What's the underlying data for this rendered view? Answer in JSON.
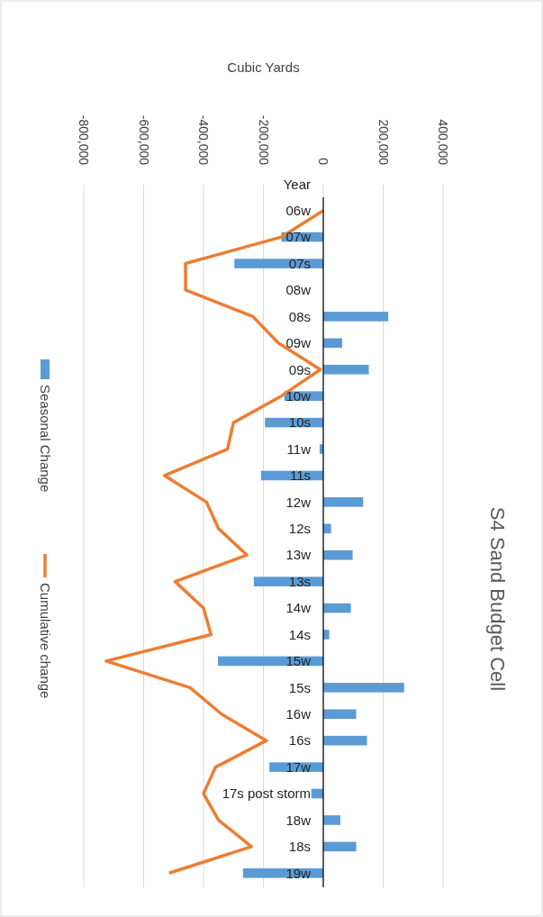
{
  "chart_data": {
    "type": "bar",
    "orientation": "horizontal",
    "title": "S4 Sand Budget Cell",
    "ylabel": "Year",
    "xlabel": "Cubic Yards",
    "categories": [
      "06w",
      "07w",
      "07s",
      "08w",
      "08s",
      "09w",
      "09s",
      "10w",
      "10s",
      "11w",
      "11s",
      "12w",
      "12s",
      "13w",
      "13s",
      "14w",
      "14s",
      "15w",
      "15s",
      "16w",
      "16s",
      "17w",
      "17s post storm",
      "18w",
      "18s",
      "19w"
    ],
    "series": [
      {
        "name": "Seasonal Change",
        "color": "#5b9bd5",
        "values": [
          null,
          -140000,
          -297000,
          null,
          217000,
          63000,
          152000,
          -130000,
          -195000,
          -12000,
          -208000,
          133000,
          26000,
          98000,
          -232000,
          92000,
          20000,
          -352000,
          270000,
          110000,
          146000,
          -180000,
          -40000,
          57000,
          110000,
          -268000
        ]
      },
      {
        "name": "Cumulative change",
        "type": "line",
        "color": "#ed7d31",
        "values": [
          0,
          -140000,
          -460000,
          -460000,
          -235000,
          -150000,
          -10000,
          -140000,
          -300000,
          -320000,
          -530000,
          -390000,
          -350000,
          -255000,
          -495000,
          -400000,
          -375000,
          -725000,
          -445000,
          -340000,
          -190000,
          -360000,
          -400000,
          -350000,
          -240000,
          -515000
        ]
      }
    ],
    "xlim": [
      -800000,
      400000
    ],
    "xticks": [
      {
        "value": -800000,
        "label": "-800,000"
      },
      {
        "value": -600000,
        "label": "-600,000"
      },
      {
        "value": -400000,
        "label": "-400,000"
      },
      {
        "value": -200000,
        "label": "-200,000"
      },
      0,
      {
        "value": 200000,
        "label": "200,000"
      },
      {
        "value": 400000,
        "label": "400,000"
      }
    ],
    "grid": "x",
    "legend": "left"
  }
}
